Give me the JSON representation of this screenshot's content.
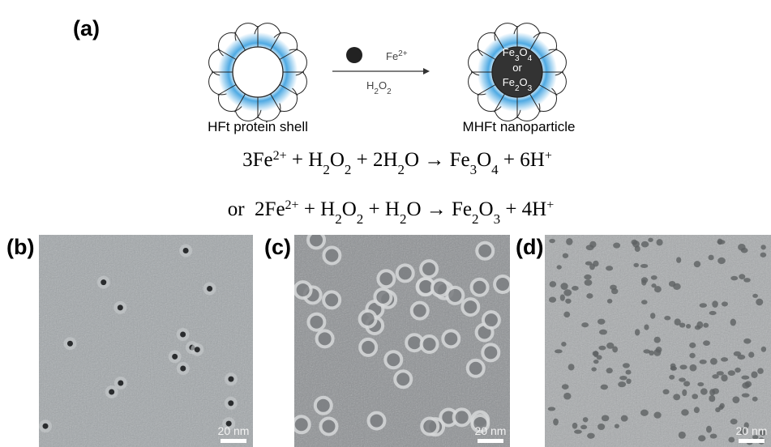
{
  "panel_a": {
    "label": "(a)",
    "reagent": [
      "Fe",
      "2+"
    ],
    "oxidant": [
      "H",
      "2",
      "O",
      "2"
    ],
    "shell_label": "HFt protein shell",
    "product_label": "MHFt nanoparticle",
    "core": {
      "line1": [
        "Fe",
        "3",
        "O",
        "4"
      ],
      "or": "or",
      "line2": [
        "Fe",
        "2",
        "O",
        "3"
      ]
    },
    "equations": [
      [
        "3Fe",
        "2+",
        " + H",
        "2",
        "O",
        "2",
        " + 2H",
        "2",
        "O → Fe",
        "3",
        "O",
        "4",
        " + 6H",
        "+"
      ],
      [
        "or  2Fe",
        "2+",
        " + H",
        "2",
        "O",
        "2",
        " + H",
        "2",
        "O → Fe",
        "2",
        "O",
        "3",
        " + 4H",
        "+"
      ]
    ]
  },
  "panels": [
    {
      "label": "(b)",
      "scale_bar": "20 nm"
    },
    {
      "label": "(c)",
      "scale_bar": "20 nm"
    },
    {
      "label": "(d)",
      "scale_bar": "20 nm"
    }
  ]
}
